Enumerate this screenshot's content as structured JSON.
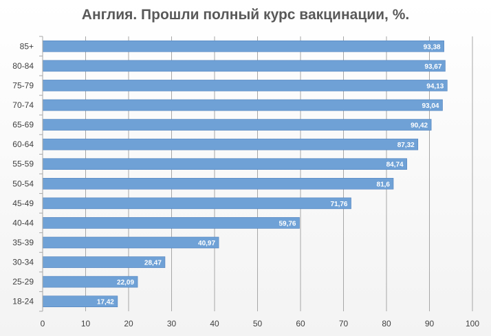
{
  "chart_data": {
    "type": "bar",
    "orientation": "horizontal",
    "title": "Англия. Прошли полный курс вакцинации, %.",
    "categories": [
      "85+",
      "80-84",
      "75-79",
      "70-74",
      "65-69",
      "60-64",
      "55-59",
      "50-54",
      "45-49",
      "40-44",
      "35-39",
      "30-34",
      "25-29",
      "18-24"
    ],
    "values": [
      93.38,
      93.67,
      94.13,
      93.04,
      90.42,
      87.32,
      84.74,
      81.6,
      71.76,
      59.76,
      40.97,
      28.47,
      22.09,
      17.42
    ],
    "value_labels": [
      "93,38",
      "93,67",
      "94,13",
      "93,04",
      "90,42",
      "87,32",
      "84,74",
      "81,6",
      "71,76",
      "59,76",
      "40,97",
      "28,47",
      "22,09",
      "17,42"
    ],
    "xlim": [
      0,
      100
    ],
    "x_ticks": [
      "0",
      "10",
      "20",
      "30",
      "40",
      "50",
      "60",
      "70",
      "80",
      "90",
      "100"
    ],
    "grid": true,
    "legend": "none",
    "bar_color": "#6fa1d6",
    "bar_border_color": "#4f81bd"
  }
}
